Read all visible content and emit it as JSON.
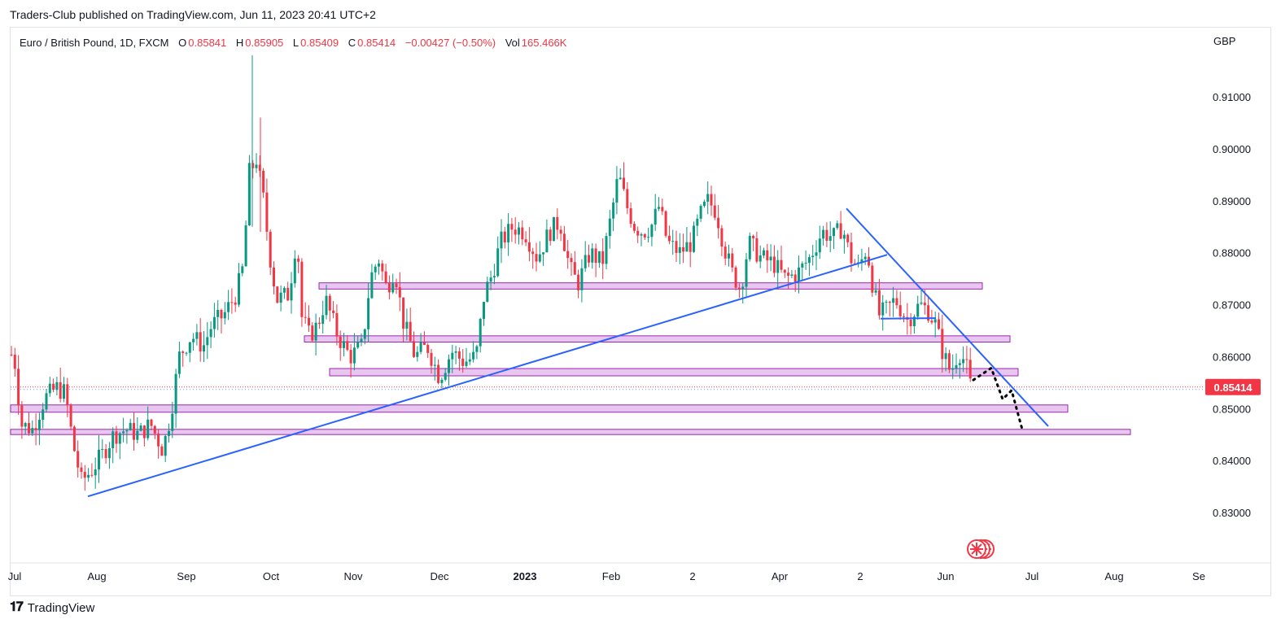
{
  "header": {
    "publisher_line": "Traders-Club published on TradingView.com, Jun 11, 2023 20:41 UTC+2"
  },
  "legend": {
    "symbol": "Euro / British Pound, 1D, FXCM",
    "open_label": "O",
    "open_value": "0.85841",
    "high_label": "H",
    "high_value": "0.85905",
    "low_label": "L",
    "low_value": "0.85409",
    "close_label": "C",
    "close_value": "0.85414",
    "change": "−0.00427 (−0.50%)",
    "vol_label": "Vol",
    "vol_value": "165.466K"
  },
  "axis": {
    "currency": "GBP"
  },
  "price_tag": {
    "value": "0.85414",
    "color": "#f23645"
  },
  "footer": {
    "brand": "TradingView",
    "logo_icon": "tradingview-logo-icon"
  },
  "colors": {
    "up": "#089981",
    "down": "#f23645",
    "trendline": "#2962ff",
    "zone_fill": "#e9c6f0",
    "zone_border": "#9c27b0"
  },
  "chart_data": {
    "type": "candlestick",
    "symbol": "EURGBP",
    "timeframe": "1D",
    "ylim": [
      0.822,
      0.92
    ],
    "x_ticks": [
      "Jul",
      "Aug",
      "Sep",
      "Oct",
      "Nov",
      "Dec",
      "2023",
      "Feb",
      "2",
      "Apr",
      "2",
      "Jun",
      "Jul",
      "Aug",
      "Se"
    ],
    "y_ticks": [
      "0.91000",
      "0.90000",
      "0.89000",
      "0.88000",
      "0.87000",
      "0.86000",
      "0.85000",
      "0.84000",
      "0.83000"
    ],
    "y_tick_values": [
      0.91,
      0.9,
      0.89,
      0.88,
      0.87,
      0.86,
      0.85,
      0.84,
      0.83
    ],
    "price_path": [
      [
        0,
        0.862
      ],
      [
        10,
        0.862
      ],
      [
        20,
        0.858
      ],
      [
        25,
        0.847
      ],
      [
        40,
        0.846
      ],
      [
        55,
        0.852
      ],
      [
        70,
        0.854
      ],
      [
        80,
        0.853
      ],
      [
        90,
        0.843
      ],
      [
        100,
        0.836
      ],
      [
        112,
        0.838
      ],
      [
        125,
        0.841
      ],
      [
        140,
        0.845
      ],
      [
        155,
        0.846
      ],
      [
        170,
        0.845
      ],
      [
        185,
        0.847
      ],
      [
        200,
        0.842
      ],
      [
        210,
        0.849
      ],
      [
        220,
        0.86
      ],
      [
        235,
        0.864
      ],
      [
        250,
        0.862
      ],
      [
        260,
        0.866
      ],
      [
        275,
        0.868
      ],
      [
        290,
        0.872
      ],
      [
        300,
        0.878
      ],
      [
        305,
        0.895
      ],
      [
        315,
        0.898
      ],
      [
        325,
        0.889
      ],
      [
        330,
        0.881
      ],
      [
        340,
        0.871
      ],
      [
        355,
        0.872
      ],
      [
        365,
        0.884
      ],
      [
        370,
        0.868
      ],
      [
        380,
        0.864
      ],
      [
        390,
        0.866
      ],
      [
        400,
        0.871
      ],
      [
        415,
        0.864
      ],
      [
        430,
        0.86
      ],
      [
        445,
        0.862
      ],
      [
        455,
        0.875
      ],
      [
        465,
        0.879
      ],
      [
        475,
        0.873
      ],
      [
        485,
        0.877
      ],
      [
        495,
        0.867
      ],
      [
        510,
        0.86
      ],
      [
        525,
        0.862
      ],
      [
        540,
        0.856
      ],
      [
        555,
        0.861
      ],
      [
        570,
        0.859
      ],
      [
        585,
        0.86
      ],
      [
        595,
        0.872
      ],
      [
        605,
        0.876
      ],
      [
        615,
        0.882
      ],
      [
        630,
        0.885
      ],
      [
        645,
        0.884
      ],
      [
        660,
        0.879
      ],
      [
        675,
        0.884
      ],
      [
        688,
        0.886
      ],
      [
        700,
        0.877
      ],
      [
        710,
        0.874
      ],
      [
        725,
        0.88
      ],
      [
        740,
        0.878
      ],
      [
        752,
        0.888
      ],
      [
        760,
        0.895
      ],
      [
        770,
        0.889
      ],
      [
        780,
        0.885
      ],
      [
        790,
        0.884
      ],
      [
        800,
        0.885
      ],
      [
        810,
        0.889
      ],
      [
        820,
        0.882
      ],
      [
        835,
        0.88
      ],
      [
        850,
        0.882
      ],
      [
        860,
        0.887
      ],
      [
        870,
        0.89
      ],
      [
        880,
        0.888
      ],
      [
        890,
        0.881
      ],
      [
        900,
        0.876
      ],
      [
        910,
        0.873
      ],
      [
        920,
        0.882
      ],
      [
        935,
        0.879
      ],
      [
        950,
        0.878
      ],
      [
        965,
        0.875
      ],
      [
        980,
        0.876
      ],
      [
        995,
        0.879
      ],
      [
        1010,
        0.884
      ],
      [
        1025,
        0.883
      ],
      [
        1035,
        0.885
      ],
      [
        1045,
        0.879
      ],
      [
        1055,
        0.877
      ],
      [
        1065,
        0.881
      ],
      [
        1072,
        0.874
      ],
      [
        1080,
        0.868
      ],
      [
        1090,
        0.869
      ],
      [
        1100,
        0.871
      ],
      [
        1115,
        0.867
      ],
      [
        1130,
        0.87
      ],
      [
        1140,
        0.869
      ],
      [
        1150,
        0.866
      ],
      [
        1158,
        0.861
      ],
      [
        1168,
        0.857
      ],
      [
        1178,
        0.861
      ],
      [
        1186,
        0.859
      ],
      [
        1193,
        0.854
      ]
    ],
    "support_resistance_zones": [
      {
        "y1": 0.8742,
        "y2": 0.873,
        "x_start": 392,
        "x_end": 1207
      },
      {
        "y1": 0.864,
        "y2": 0.8628,
        "x_start": 374,
        "x_end": 1241
      },
      {
        "y1": 0.8577,
        "y2": 0.8563,
        "x_start": 405,
        "x_end": 1251
      },
      {
        "y1": 0.8507,
        "y2": 0.8493,
        "x_start": 13,
        "x_end": 1312
      },
      {
        "y1": 0.846,
        "y2": 0.845,
        "x_start": 13,
        "x_end": 1389
      }
    ],
    "trendlines": [
      {
        "from": [
          108,
          0.8331
        ],
        "to": [
          1090,
          0.8796
        ]
      },
      {
        "from": [
          1040,
          0.8885
        ],
        "to": [
          1288,
          0.8466
        ]
      },
      {
        "from": [
          1082,
          0.8673
        ],
        "to": [
          1150,
          0.8674
        ]
      }
    ],
    "projected_path": [
      [
        1196,
        0.8555
      ],
      [
        1218,
        0.8578
      ],
      [
        1232,
        0.8518
      ],
      [
        1243,
        0.8535
      ],
      [
        1256,
        0.846
      ]
    ],
    "last_price": 0.85414
  }
}
